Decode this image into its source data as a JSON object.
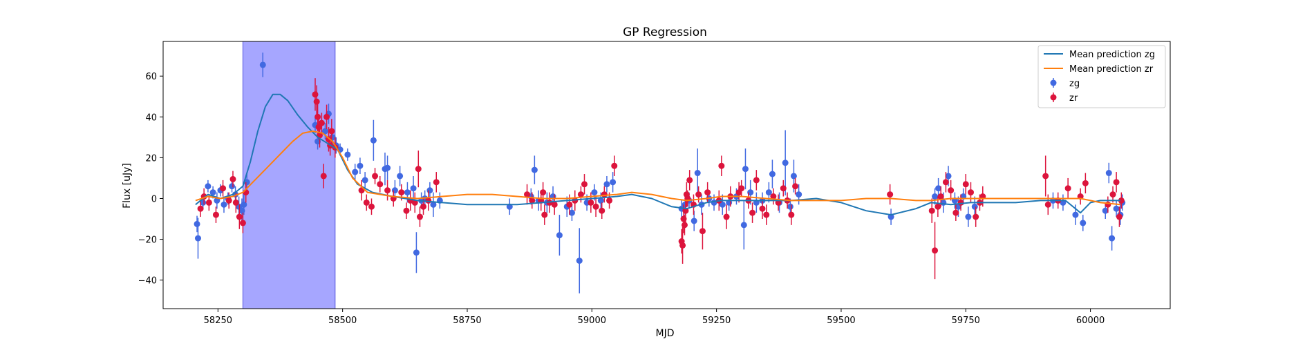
{
  "chart_data": {
    "type": "scatter",
    "title": "GP Regression",
    "xlabel": "MJD",
    "ylabel": "Flux [uJy]",
    "xlim": [
      58140,
      60160
    ],
    "ylim": [
      -54,
      77
    ],
    "xticks": [
      58250,
      58500,
      58750,
      59000,
      59250,
      59500,
      59750,
      60000
    ],
    "yticks": [
      -40,
      -20,
      0,
      20,
      40,
      60
    ],
    "grid": false,
    "legend_position": "top-right",
    "highlight_span": {
      "x0": 58300,
      "x1": 58485,
      "color": "#a6a6ff"
    },
    "lines": [
      {
        "name": "Mean prediction zg",
        "color": "#1f77b4",
        "x": [
          58205,
          58230,
          58255,
          58280,
          58300,
          58315,
          58330,
          58345,
          58360,
          58375,
          58390,
          58410,
          58430,
          58450,
          58470,
          58490,
          58510,
          58530,
          58560,
          58600,
          58650,
          58700,
          58750,
          58800,
          58850,
          58900,
          58950,
          59000,
          59050,
          59080,
          59120,
          59160,
          59190,
          59230,
          59260,
          59300,
          59350,
          59400,
          59450,
          59500,
          59550,
          59600,
          59650,
          59680,
          59720,
          59760,
          59800,
          59850,
          59900,
          59950,
          59980,
          60000,
          60020,
          60060
        ],
        "y": [
          -3,
          2,
          0,
          2,
          6,
          18,
          33,
          45,
          51,
          51,
          48,
          41,
          35,
          30,
          27,
          24,
          14,
          7,
          3,
          1,
          -1,
          -2,
          -3,
          -3,
          -3,
          -2,
          -1,
          0,
          1,
          2,
          0,
          -4,
          -5,
          -2,
          -1,
          -1,
          -1,
          -1,
          0,
          -2,
          -6,
          -8,
          -5,
          -2,
          -3,
          -2,
          -2,
          -2,
          -1,
          -1,
          -7,
          -2,
          -1,
          -1
        ]
      },
      {
        "name": "Mean prediction zr",
        "color": "#ff7f0e",
        "x": [
          58205,
          58230,
          58255,
          58280,
          58300,
          58320,
          58340,
          58360,
          58380,
          58400,
          58420,
          58440,
          58460,
          58480,
          58500,
          58520,
          58550,
          58600,
          58650,
          58700,
          58750,
          58800,
          58850,
          58900,
          58950,
          59000,
          59050,
          59080,
          59120,
          59160,
          59190,
          59230,
          59260,
          59300,
          59350,
          59400,
          59450,
          59500,
          59550,
          59600,
          59650,
          59680,
          59720,
          59760,
          59800,
          59850,
          59900,
          59950,
          59980,
          60000,
          60020,
          60060
        ],
        "y": [
          -1,
          1,
          0,
          1,
          3,
          8,
          13,
          18,
          23,
          28,
          32,
          33,
          32,
          28,
          20,
          10,
          3,
          1,
          0,
          1,
          2,
          2,
          1,
          0,
          0,
          1,
          2,
          3,
          2,
          0,
          -1,
          0,
          1,
          1,
          0,
          -1,
          -1,
          -1,
          0,
          0,
          -1,
          -1,
          0,
          0,
          0,
          0,
          0,
          0,
          0,
          -1,
          -2,
          -3
        ]
      }
    ],
    "series": [
      {
        "name": "zg",
        "color": "#4169e1",
        "points": [
          [
            58208,
            -12.5,
            4
          ],
          [
            58210,
            -19.5,
            10
          ],
          [
            58220,
            -2,
            3
          ],
          [
            58230,
            6,
            3
          ],
          [
            58240,
            3,
            3
          ],
          [
            58248,
            -1,
            4
          ],
          [
            58255,
            4,
            3
          ],
          [
            58262,
            -3,
            4
          ],
          [
            58270,
            0,
            3
          ],
          [
            58278,
            6,
            3
          ],
          [
            58285,
            2,
            4
          ],
          [
            58292,
            -4,
            5
          ],
          [
            58298,
            -6,
            6
          ],
          [
            58302,
            -3,
            5
          ],
          [
            58308,
            8,
            4
          ],
          [
            58340,
            65.5,
            6
          ],
          [
            58445,
            36,
            4
          ],
          [
            58450,
            28,
            4
          ],
          [
            58465,
            33,
            4
          ],
          [
            58472,
            41.5,
            5
          ],
          [
            58480,
            30,
            4
          ],
          [
            58487,
            26,
            4
          ],
          [
            58495,
            24,
            3
          ],
          [
            58510,
            21.5,
            3
          ],
          [
            58525,
            13,
            4
          ],
          [
            58535,
            16,
            4
          ],
          [
            58545,
            9,
            4
          ],
          [
            58562,
            28.5,
            10
          ],
          [
            58585,
            14.5,
            8
          ],
          [
            58590,
            15,
            6
          ],
          [
            58605,
            4,
            5
          ],
          [
            58615,
            11,
            5
          ],
          [
            58630,
            3,
            5
          ],
          [
            58642,
            5,
            6
          ],
          [
            58648,
            -26.5,
            10
          ],
          [
            58658,
            -1,
            4
          ],
          [
            58665,
            0,
            4
          ],
          [
            58675,
            4,
            4
          ],
          [
            58682,
            -3,
            6
          ],
          [
            58695,
            -1,
            4
          ],
          [
            58835,
            -4,
            4
          ],
          [
            58878,
            1,
            4
          ],
          [
            58885,
            14,
            7
          ],
          [
            58893,
            -1,
            5
          ],
          [
            58910,
            -2,
            5
          ],
          [
            58922,
            1,
            5
          ],
          [
            58935,
            -18,
            10
          ],
          [
            58950,
            -4,
            5
          ],
          [
            58960,
            -7,
            4
          ],
          [
            58975,
            -30.5,
            16
          ],
          [
            58990,
            -2,
            4
          ],
          [
            59005,
            3,
            4
          ],
          [
            59018,
            -1,
            4
          ],
          [
            59030,
            7,
            4
          ],
          [
            59042,
            8,
            5
          ],
          [
            59180,
            -5,
            4
          ],
          [
            59187,
            -3,
            5
          ],
          [
            59195,
            -1,
            4
          ],
          [
            59205,
            -11,
            5
          ],
          [
            59212,
            12.5,
            12
          ],
          [
            59220,
            -3,
            5
          ],
          [
            59235,
            0,
            4
          ],
          [
            59245,
            -2,
            4
          ],
          [
            59262,
            -3,
            5
          ],
          [
            59275,
            -2,
            4
          ],
          [
            59290,
            1,
            4
          ],
          [
            59305,
            -13,
            12
          ],
          [
            59308,
            14.5,
            10
          ],
          [
            59318,
            3,
            6
          ],
          [
            59330,
            -2,
            5
          ],
          [
            59342,
            -1,
            4
          ],
          [
            59355,
            3,
            5
          ],
          [
            59362,
            12,
            7
          ],
          [
            59376,
            -2,
            5
          ],
          [
            59388,
            17.5,
            16
          ],
          [
            59398,
            -4,
            4
          ],
          [
            59405,
            11,
            8
          ],
          [
            59415,
            2,
            5
          ],
          [
            59600,
            -9,
            4
          ],
          [
            59688,
            1,
            4
          ],
          [
            59695,
            5,
            5
          ],
          [
            59705,
            -2,
            5
          ],
          [
            59715,
            11,
            5
          ],
          [
            59728,
            -1,
            4
          ],
          [
            59735,
            -4,
            5
          ],
          [
            59745,
            1,
            4
          ],
          [
            59755,
            -9,
            5
          ],
          [
            59768,
            -4,
            5
          ],
          [
            59925,
            -1,
            4
          ],
          [
            59945,
            -2,
            4
          ],
          [
            59970,
            -8,
            5
          ],
          [
            59985,
            -12,
            4
          ],
          [
            60030,
            -6,
            4
          ],
          [
            60037,
            12.5,
            5
          ],
          [
            60043,
            -19.5,
            6
          ],
          [
            60052,
            -5,
            4
          ],
          [
            60060,
            -8,
            5
          ],
          [
            60064,
            -2,
            4
          ]
        ]
      },
      {
        "name": "zr",
        "color": "#dc143c",
        "points": [
          [
            58215,
            -5,
            4
          ],
          [
            58222,
            1,
            4
          ],
          [
            58232,
            -2,
            4
          ],
          [
            58246,
            -8,
            4
          ],
          [
            58260,
            5,
            4
          ],
          [
            58272,
            -1,
            4
          ],
          [
            58280,
            9.5,
            4
          ],
          [
            58286,
            -2,
            5
          ],
          [
            58293,
            -9,
            6
          ],
          [
            58300,
            -12,
            5
          ],
          [
            58306,
            3,
            5
          ],
          [
            58445,
            51,
            8
          ],
          [
            58448,
            47.5,
            8
          ],
          [
            58450,
            40,
            7
          ],
          [
            58452,
            35,
            6
          ],
          [
            58454,
            31,
            6
          ],
          [
            58458,
            37,
            5
          ],
          [
            58462,
            11,
            6
          ],
          [
            58468,
            40,
            6
          ],
          [
            58472,
            29,
            6
          ],
          [
            58475,
            26,
            5
          ],
          [
            58478,
            33,
            6
          ],
          [
            58485,
            25,
            5
          ],
          [
            58538,
            4,
            5
          ],
          [
            58548,
            -2,
            4
          ],
          [
            58558,
            -4,
            4
          ],
          [
            58565,
            11,
            4
          ],
          [
            58575,
            7,
            4
          ],
          [
            58590,
            4,
            5
          ],
          [
            58602,
            0,
            4
          ],
          [
            58618,
            3,
            4
          ],
          [
            58628,
            -6,
            4
          ],
          [
            58636,
            -1,
            5
          ],
          [
            58645,
            -2,
            5
          ],
          [
            58652,
            14.5,
            9
          ],
          [
            58655,
            -9,
            5
          ],
          [
            58662,
            -4,
            4
          ],
          [
            58672,
            -1,
            5
          ],
          [
            58688,
            8,
            5
          ],
          [
            58870,
            2,
            5
          ],
          [
            58880,
            -1,
            4
          ],
          [
            58898,
            -1,
            5
          ],
          [
            58902,
            3,
            5
          ],
          [
            58905,
            -8,
            5
          ],
          [
            58915,
            -2,
            5
          ],
          [
            58925,
            -3,
            5
          ],
          [
            58955,
            -3,
            5
          ],
          [
            58966,
            -1,
            5
          ],
          [
            58978,
            2,
            4
          ],
          [
            58985,
            7,
            5
          ],
          [
            58998,
            -2,
            5
          ],
          [
            59008,
            -4,
            5
          ],
          [
            59020,
            -6,
            4
          ],
          [
            59025,
            2,
            4
          ],
          [
            59035,
            -1,
            4
          ],
          [
            59045,
            16,
            5
          ],
          [
            59180,
            -21,
            6
          ],
          [
            59182,
            -23,
            9
          ],
          [
            59184,
            -10,
            7
          ],
          [
            59186,
            -13,
            5
          ],
          [
            59188,
            -6,
            6
          ],
          [
            59190,
            2,
            6
          ],
          [
            59192,
            0,
            4
          ],
          [
            59196,
            9,
            5
          ],
          [
            59204,
            -3,
            5
          ],
          [
            59214,
            2,
            4
          ],
          [
            59222,
            -16,
            9
          ],
          [
            59232,
            3,
            5
          ],
          [
            59255,
            -1,
            5
          ],
          [
            59260,
            16,
            5
          ],
          [
            59270,
            -9,
            6
          ],
          [
            59278,
            1,
            5
          ],
          [
            59295,
            3,
            5
          ],
          [
            59300,
            5,
            4
          ],
          [
            59314,
            -1,
            4
          ],
          [
            59322,
            -7,
            5
          ],
          [
            59330,
            9,
            5
          ],
          [
            59342,
            -5,
            5
          ],
          [
            59350,
            -8,
            5
          ],
          [
            59364,
            1,
            4
          ],
          [
            59374,
            -2,
            4
          ],
          [
            59384,
            5,
            4
          ],
          [
            59392,
            -1,
            4
          ],
          [
            59400,
            -8,
            5
          ],
          [
            59408,
            6,
            4
          ],
          [
            59598,
            2,
            5
          ],
          [
            59682,
            -6,
            6
          ],
          [
            59688,
            -25.5,
            14
          ],
          [
            59694,
            -4,
            5
          ],
          [
            59700,
            1,
            5
          ],
          [
            59710,
            8,
            5
          ],
          [
            59720,
            4,
            5
          ],
          [
            59730,
            -7,
            4
          ],
          [
            59740,
            -2,
            4
          ],
          [
            59750,
            7,
            5
          ],
          [
            59760,
            3,
            5
          ],
          [
            59770,
            -9,
            5
          ],
          [
            59778,
            -2,
            4
          ],
          [
            59784,
            1,
            5
          ],
          [
            59910,
            11,
            10
          ],
          [
            59915,
            -3,
            5
          ],
          [
            59935,
            -1,
            4
          ],
          [
            59955,
            5,
            5
          ],
          [
            59980,
            1,
            4
          ],
          [
            59990,
            7.5,
            5
          ],
          [
            60035,
            -3,
            4
          ],
          [
            60045,
            2,
            4
          ],
          [
            60052,
            8,
            5
          ],
          [
            60058,
            -9,
            5
          ],
          [
            60062,
            -1,
            4
          ]
        ]
      }
    ]
  }
}
